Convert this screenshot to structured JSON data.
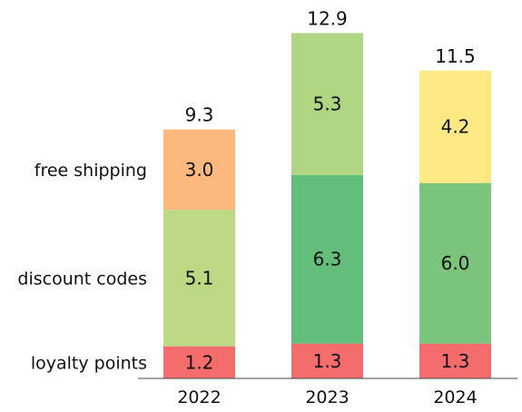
{
  "chart_data": {
    "type": "bar",
    "stacked": true,
    "categories": [
      "2022",
      "2023",
      "2024"
    ],
    "series": [
      {
        "name": "loyalty points",
        "values": [
          1.2,
          1.3,
          1.3
        ]
      },
      {
        "name": "discount codes",
        "values": [
          5.1,
          6.3,
          6.0
        ]
      },
      {
        "name": "free shipping",
        "values": [
          3.0,
          5.3,
          4.2
        ]
      }
    ],
    "totals": [
      9.3,
      12.9,
      11.5
    ],
    "value_labels": [
      [
        "1.2",
        "1.3",
        "1.3"
      ],
      [
        "5.1",
        "6.3",
        "6.0"
      ],
      [
        "3.0",
        "5.3",
        "4.2"
      ]
    ],
    "total_labels": [
      "9.3",
      "12.9",
      "11.5"
    ],
    "segment_colors": [
      [
        "#F46C6C",
        "#F46C6C",
        "#F46C6C"
      ],
      [
        "#BDD985",
        "#63BE7B",
        "#7BC47C"
      ],
      [
        "#FDB97D",
        "#B0D583",
        "#FFE984"
      ]
    ],
    "row_labels_position": "left",
    "grid": false,
    "ylim": [
      0,
      12.9
    ]
  }
}
